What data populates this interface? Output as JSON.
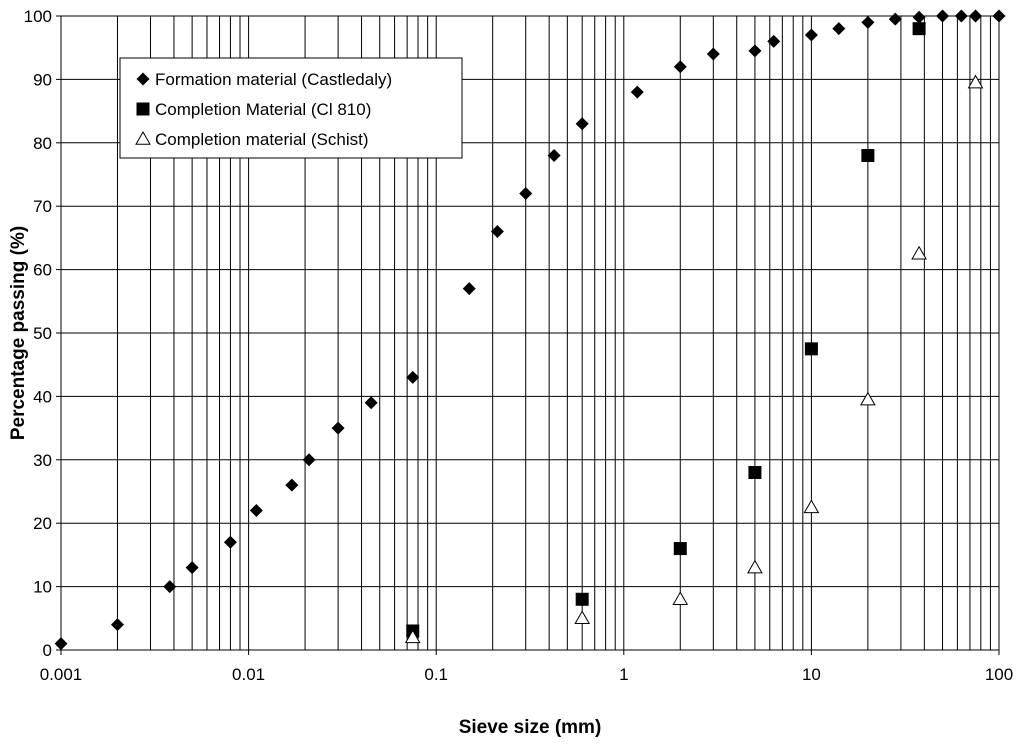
{
  "chart_data": {
    "type": "scatter",
    "title": "",
    "xlabel": "Sieve size (mm)",
    "ylabel": "Percentage passing (%)",
    "x_scale": "log",
    "xlim": [
      0.001,
      100
    ],
    "ylim": [
      0,
      100
    ],
    "x_tick_labels": [
      "0.001",
      "0.01",
      "0.1",
      "1",
      "10",
      "100"
    ],
    "x_tick_values": [
      0.001,
      0.01,
      0.1,
      1,
      10,
      100
    ],
    "y_ticks": [
      0,
      10,
      20,
      30,
      40,
      50,
      60,
      70,
      80,
      90,
      100
    ],
    "grid": true,
    "legend_position": "top-left",
    "series": [
      {
        "name": "Formation material (Castledaly)",
        "marker": "filled-diamond",
        "color": "#000000",
        "points": [
          [
            0.001,
            1
          ],
          [
            0.002,
            4
          ],
          [
            0.0038,
            10
          ],
          [
            0.005,
            13
          ],
          [
            0.008,
            17
          ],
          [
            0.011,
            22
          ],
          [
            0.017,
            26
          ],
          [
            0.021,
            30
          ],
          [
            0.03,
            35
          ],
          [
            0.045,
            39
          ],
          [
            0.075,
            43
          ],
          [
            0.15,
            57
          ],
          [
            0.212,
            66
          ],
          [
            0.3,
            72
          ],
          [
            0.425,
            78
          ],
          [
            0.6,
            83
          ],
          [
            1.18,
            88
          ],
          [
            2,
            92
          ],
          [
            3,
            94
          ],
          [
            5,
            94.5
          ],
          [
            6.3,
            96
          ],
          [
            10,
            97
          ],
          [
            14,
            98
          ],
          [
            20,
            99
          ],
          [
            28,
            99.5
          ],
          [
            37.5,
            99.8
          ],
          [
            50,
            100
          ],
          [
            63,
            100
          ],
          [
            75,
            100
          ],
          [
            100,
            100
          ]
        ]
      },
      {
        "name": "Completion Material (Cl 810)",
        "marker": "filled-square",
        "color": "#000000",
        "points": [
          [
            0.075,
            3
          ],
          [
            0.6,
            8
          ],
          [
            2,
            16
          ],
          [
            5,
            28
          ],
          [
            10,
            47.5
          ],
          [
            20,
            78
          ],
          [
            37.5,
            98
          ]
        ]
      },
      {
        "name": "Completion material (Schist)",
        "marker": "open-triangle",
        "color": "#000000",
        "points": [
          [
            0.075,
            2
          ],
          [
            0.6,
            5
          ],
          [
            2,
            8
          ],
          [
            5,
            13
          ],
          [
            10,
            22.5
          ],
          [
            20,
            39.5
          ],
          [
            37.5,
            62.5
          ],
          [
            75,
            89.5
          ]
        ]
      }
    ]
  }
}
